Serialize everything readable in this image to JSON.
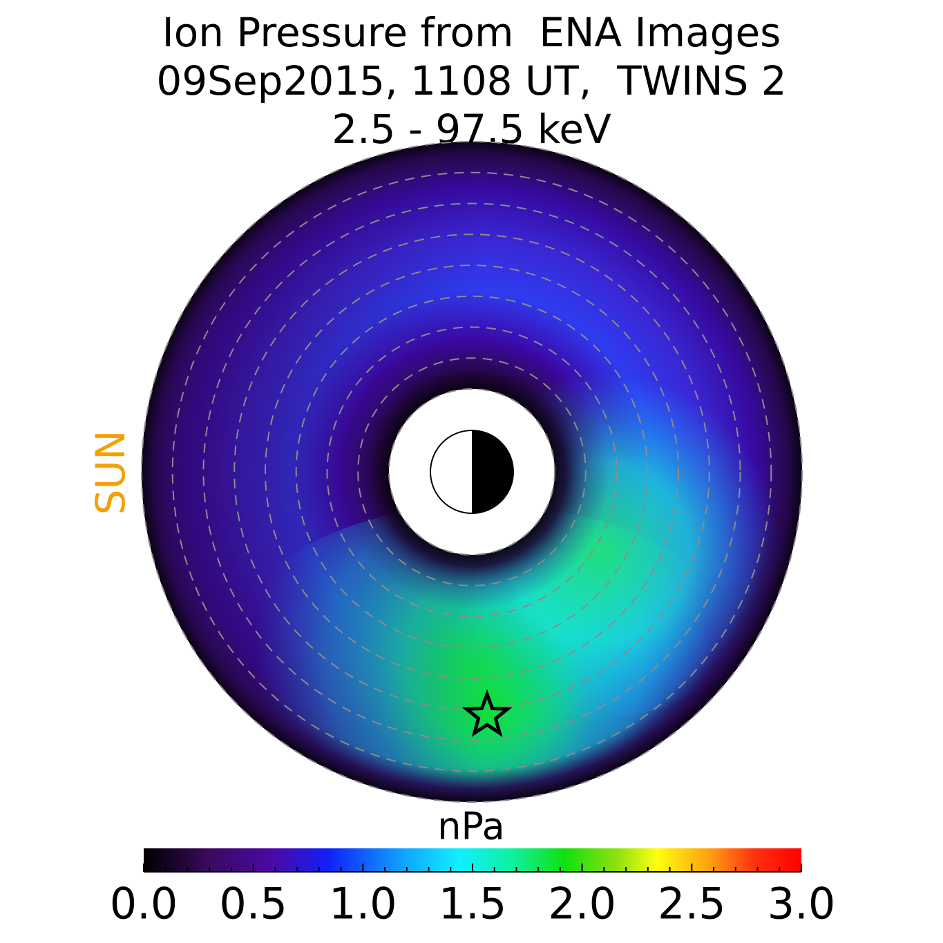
{
  "title": {
    "line1": "Ion Pressure from  ENA Images",
    "line2": "09Sep2015, 1108 UT,  TWINS 2",
    "line3": "2.5 - 97.5 keV"
  },
  "sun_label": "SUN",
  "colorbar": {
    "unit": "nPa",
    "min": 0.0,
    "max": 3.0,
    "tick_labels": [
      "0.0",
      "0.5",
      "1.0",
      "1.5",
      "2.0",
      "2.5",
      "3.0"
    ],
    "colormap": "black-purple-blue-cyan-green-yellow-red"
  },
  "chart_data": {
    "type": "heatmap",
    "projection": "polar, equatorial plane, sun to the left",
    "title": "Ion Pressure from  ENA Images / 09Sep2015, 1108 UT,  TWINS 2 / 2.5 - 97.5 keV",
    "colorbar_label": "nPa",
    "value_range": [
      0.0,
      3.0
    ],
    "dashed_circles": 8,
    "features": [
      {
        "region": "dawn/dusk ring near noon (sun side)",
        "pressure_nPa": 0.3
      },
      {
        "region": "post-midnight night sector ring",
        "pressure_nPa": 1.3
      },
      {
        "region": "midnight sector peak (star)",
        "pressure_nPa": 1.7
      },
      {
        "region": "dusk side near earth",
        "pressure_nPa": 1.4
      },
      {
        "region": "outer edge",
        "pressure_nPa": 0.05
      }
    ],
    "peak_marker": "star"
  },
  "colors": {
    "sun": "#f5a000",
    "grid": "#8c8c8c"
  }
}
